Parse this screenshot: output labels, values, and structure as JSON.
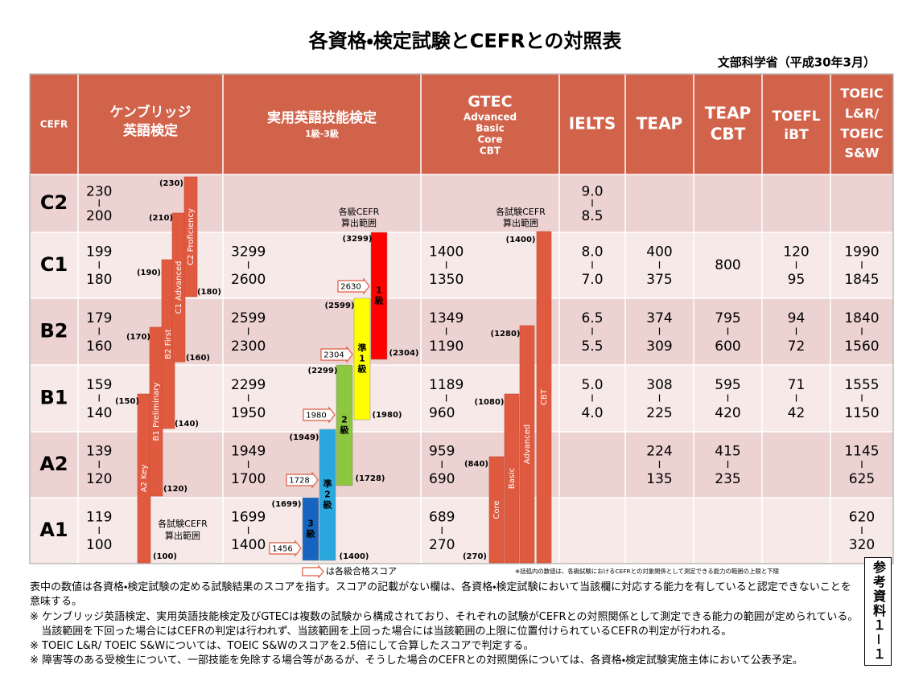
{
  "header": {
    "title": "各資格・検定試験とCEFRとの対照表",
    "source": "文部科学省（平成30年3月）"
  },
  "table": {
    "columns": [
      {
        "lines": [
          "CEFR"
        ]
      },
      {
        "lines": [
          "ケンブリッジ",
          "英語検定"
        ]
      },
      {
        "lines": [
          "実用英語技能検定"
        ],
        "sub": [
          "1級-3級"
        ]
      },
      {
        "lines": [
          "GTEC"
        ],
        "sub": [
          "Advanced",
          "Basic",
          "Core",
          "CBT"
        ]
      },
      {
        "lines": [
          "IELTS"
        ]
      },
      {
        "lines": [
          "TEAP"
        ]
      },
      {
        "lines": [
          "TEAP",
          "CBT"
        ]
      },
      {
        "lines": [
          "TOEFL",
          "iBT"
        ]
      },
      {
        "lines": [
          "TOEIC",
          "L&R/",
          "TOEIC",
          "S&W"
        ]
      }
    ],
    "rows": [
      {
        "level": "C2",
        "cells": [
          {
            "high": "230",
            "low": "200"
          },
          null,
          null,
          {
            "high": "9.0",
            "low": "8.5"
          },
          null,
          null,
          null,
          null
        ]
      },
      {
        "level": "C1",
        "cells": [
          {
            "high": "199",
            "low": "180"
          },
          {
            "high": "3299",
            "low": "2600"
          },
          {
            "high": "1400",
            "low": "1350"
          },
          {
            "high": "8.0",
            "low": "7.0"
          },
          {
            "high": "400",
            "low": "375"
          },
          {
            "value": "800"
          },
          {
            "high": "120",
            "low": "95"
          },
          {
            "high": "1990",
            "low": "1845"
          }
        ]
      },
      {
        "level": "B2",
        "cells": [
          {
            "high": "179",
            "low": "160"
          },
          {
            "high": "2599",
            "low": "2300"
          },
          {
            "high": "1349",
            "low": "1190"
          },
          {
            "high": "6.5",
            "low": "5.5"
          },
          {
            "high": "374",
            "low": "309"
          },
          {
            "high": "795",
            "low": "600"
          },
          {
            "high": "94",
            "low": "72"
          },
          {
            "high": "1840",
            "low": "1560"
          }
        ]
      },
      {
        "level": "B1",
        "cells": [
          {
            "high": "159",
            "low": "140"
          },
          {
            "high": "2299",
            "low": "1950"
          },
          {
            "high": "1189",
            "low": "960"
          },
          {
            "high": "5.0",
            "low": "4.0"
          },
          {
            "high": "308",
            "low": "225"
          },
          {
            "high": "595",
            "low": "420"
          },
          {
            "high": "71",
            "low": "42"
          },
          {
            "high": "1555",
            "low": "1150"
          }
        ]
      },
      {
        "level": "A2",
        "cells": [
          {
            "high": "139",
            "low": "120"
          },
          {
            "high": "1949",
            "low": "1700"
          },
          {
            "high": "959",
            "low": "690"
          },
          null,
          {
            "high": "224",
            "low": "135"
          },
          {
            "high": "415",
            "low": "235"
          },
          null,
          {
            "high": "1145",
            "low": "625"
          }
        ]
      },
      {
        "level": "A1",
        "cells": [
          {
            "high": "119",
            "low": "100"
          },
          {
            "high": "1699",
            "low": "1400"
          },
          {
            "high": "689",
            "low": "270"
          },
          null,
          null,
          null,
          null,
          {
            "high": "620",
            "low": "320"
          }
        ]
      }
    ]
  },
  "cambridge": {
    "note": [
      "各試験CEFR",
      "算出範囲"
    ],
    "bars": [
      {
        "name": "A2 Key",
        "upper": "(150)",
        "lower": "(100)"
      },
      {
        "name": "B1 Preliminary",
        "upper": "(170)",
        "lower": "(120)"
      },
      {
        "name": "B2 First",
        "upper": "(190)",
        "lower": "(140)"
      },
      {
        "name": "C1 Advanced",
        "upper": "(210)",
        "lower": "(160)"
      },
      {
        "name": "C2 Proficiency",
        "upper": "(230)",
        "lower": "(180)"
      }
    ]
  },
  "eiken": {
    "note": [
      "各級CEFR",
      "算出範囲"
    ],
    "bars": [
      {
        "label": [
          "3",
          "級"
        ],
        "color": "#1565c0",
        "upper": "(1699)",
        "pass": "1456"
      },
      {
        "label": [
          "準",
          "2",
          "級"
        ],
        "color": "#29a8e0",
        "upper": "(1949)",
        "pass": "1728",
        "lower": "(1400)"
      },
      {
        "label": [
          "2",
          "級"
        ],
        "color": "#8dc63f",
        "upper": "(2299)",
        "pass": "1980",
        "lower": "(1728)"
      },
      {
        "label": [
          "準",
          "1",
          "級"
        ],
        "color": "#ffff00",
        "upper": "(2599)",
        "pass": "2304",
        "lower": "(1980)"
      },
      {
        "label": [
          "1",
          "級"
        ],
        "color": "#ff0000",
        "upper": "(3299)",
        "pass": "2630",
        "lower": "(2304)"
      }
    ],
    "legend": "は各級合格スコア"
  },
  "gtec": {
    "note": [
      "各試験CEFR",
      "算出範囲"
    ],
    "bars": [
      {
        "name": "Core",
        "upper": "(840)",
        "lower": "(270)"
      },
      {
        "name": "Basic",
        "upper": "(1080)"
      },
      {
        "name": "Advanced",
        "upper": "(1280)"
      },
      {
        "name": "CBT",
        "upper": "(1400)"
      }
    ]
  },
  "footnote": "※括弧内の数値は、各級試験におけるCEFRとの対象関係として測定できる能力の範囲の上限と下限",
  "side_label": "参考資料１－１",
  "notes": [
    "表中の数値は各資格・検定試験の定める試験結果のスコアを指す。スコアの記載がない欄は、各資格・検定試験において当該欄に対応する能力を有していると認定できないことを意味する。",
    "※ ケンブリッジ英語検定、実用英語技能検定及びGTECは複数の試験から構成されており、それぞれの試験がCEFRとの対照関係として測定できる能力の範囲が定められている。当該範囲を下回った場合にはCEFRの判定は行われず、当該範囲を上回った場合には当該範囲の上限に位置付けられているCEFRの判定が行われる。",
    "※ TOEIC L&R/ TOEIC S&Wについては、TOEIC S&Wのスコアを2.5倍にして合算したスコアで判定する。",
    "※ 障害等のある受検生について、一部技能を免除する場合等があるが、そうした場合のCEFRとの対照関係については、各資格・検定試験実施主体において公表予定。"
  ]
}
